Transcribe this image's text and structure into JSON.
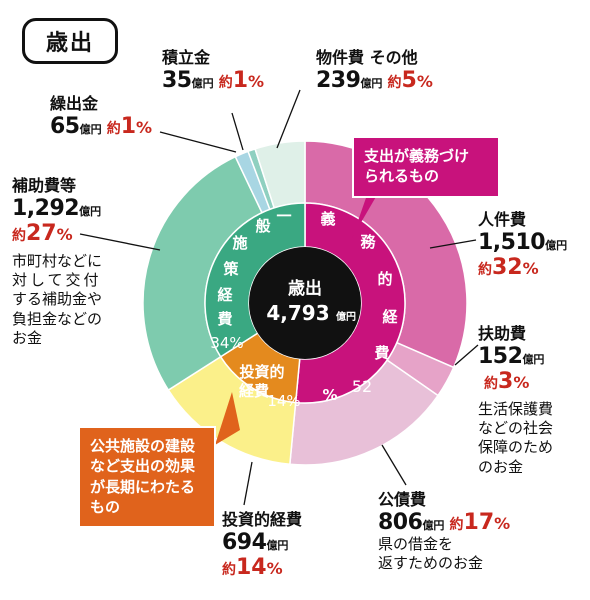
{
  "title": "歳出",
  "center": {
    "label": "歳出",
    "value": "4,793",
    "unit": "億円"
  },
  "inner": {
    "general": {
      "chars": [
        "一",
        "般",
        "施",
        "策",
        "経",
        "費"
      ],
      "pct": "34%"
    },
    "mandatory": {
      "chars": [
        "義",
        "務",
        "的",
        "経",
        "費"
      ],
      "pct": "52",
      "pct_sign": "%"
    },
    "investment": {
      "label1": "投資的",
      "label2": "経費",
      "pct": "14%"
    }
  },
  "items": {
    "tsumitate": {
      "name": "積立金",
      "value": "35",
      "unit": "億円",
      "yaku": "約",
      "pct": "1",
      "pct_sign": "%"
    },
    "bukken": {
      "name": "物件費 その他",
      "value": "239",
      "unit": "億円",
      "yaku": "約",
      "pct": "5",
      "pct_sign": "%"
    },
    "kuridashi": {
      "name": "繰出金",
      "value": "65",
      "unit": "億円",
      "yaku": "約",
      "pct": "1",
      "pct_sign": "%"
    },
    "hojo": {
      "name": "補助費等",
      "value": "1,292",
      "unit": "億円",
      "yaku": "約",
      "pct": "27",
      "pct_sign": "%",
      "note1": "市町村などに",
      "note2": "対して交付",
      "note3": "する補助金や",
      "note4": "負担金などの",
      "note5": "お金"
    },
    "jinken": {
      "name": "人件費",
      "value": "1,510",
      "unit": "億円",
      "yaku": "約",
      "pct": "32",
      "pct_sign": "%"
    },
    "fujo": {
      "name": "扶助費",
      "value": "152",
      "unit": "億円",
      "yaku": "約",
      "pct": "3",
      "pct_sign": "%",
      "note1": "生活保護費",
      "note2": "などの社会",
      "note3": "保障のため",
      "note4": "のお金"
    },
    "kosai": {
      "name": "公債費",
      "value": "806",
      "unit": "億円",
      "yaku": "約",
      "pct": "17",
      "pct_sign": "%",
      "note1": "県の借金を",
      "note2": "返すためのお金"
    },
    "toshi": {
      "name": "投資的経費",
      "value": "694",
      "unit": "億円",
      "yaku": "約",
      "pct": "14",
      "pct_sign": "%"
    }
  },
  "callouts": {
    "mandatory": {
      "line1": "支出が義務づけ",
      "line2": "られるもの"
    },
    "investment": {
      "line1": "公共施設の建設",
      "line2": "など支出の効果",
      "line3": "が長期にわたる",
      "line4": "もの"
    }
  },
  "colors": {
    "jinken": "#d96aa8",
    "fujo": "#e6a3c8",
    "kosai": "#e8c0d8",
    "toshi": "#fbf08a",
    "hojo": "#7ecbae",
    "kuridashi": "#a8d6e3",
    "tsumitate": "#8fd0c0",
    "bukken": "#dff0e8",
    "inner_mandatory": "#c8127c",
    "inner_investment": "#e48a1e",
    "inner_general": "#3aa882",
    "center": "#111111",
    "callout_mandatory": "#c8127c",
    "callout_investment": "#e0631c",
    "pct_red": "#c8281e"
  }
}
